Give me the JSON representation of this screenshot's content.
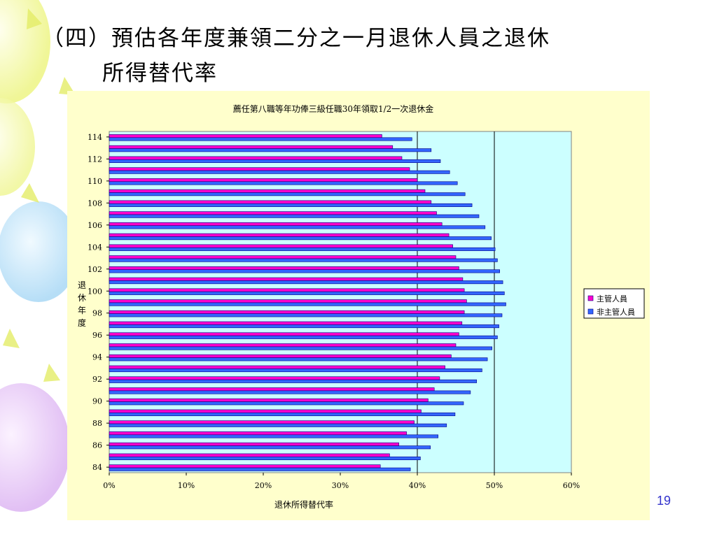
{
  "slide": {
    "title_line1": "（四）預估各年度兼領二分之一月退休人員之退休",
    "title_line2": "所得替代率",
    "page_number": "19"
  },
  "colors": {
    "plot_background": "#ccffff",
    "chart_background": "#ffffcc",
    "supervisor_bar": "#ff00cc",
    "non_supervisor_bar": "#3366ff",
    "bar_outline": "#000080"
  },
  "chart_data": {
    "type": "bar",
    "orientation": "horizontal",
    "title": "薦任第八職等年功俸三級任職30年領取1/2一次退休金",
    "xlabel": "退休所得替代率",
    "ylabel": "退休年度",
    "xlim": [
      0,
      0.6
    ],
    "x_ticks": [
      "0%",
      "10%",
      "20%",
      "30%",
      "40%",
      "50%",
      "60%"
    ],
    "reference_lines": [
      0.4,
      0.5
    ],
    "legend_position": "right",
    "categories": [
      "84",
      "85",
      "86",
      "87",
      "88",
      "89",
      "90",
      "91",
      "92",
      "93",
      "94",
      "95",
      "96",
      "97",
      "98",
      "99",
      "100",
      "101",
      "102",
      "103",
      "104",
      "105",
      "106",
      "107",
      "108",
      "109",
      "110",
      "111",
      "112",
      "113",
      "114"
    ],
    "y_tick_labels": [
      "84",
      "86",
      "88",
      "90",
      "92",
      "94",
      "96",
      "98",
      "100",
      "102",
      "104",
      "106",
      "108",
      "110",
      "112",
      "114"
    ],
    "series": [
      {
        "name": "主管人員",
        "values": [
          0.352,
          0.364,
          0.376,
          0.386,
          0.396,
          0.405,
          0.414,
          0.422,
          0.429,
          0.436,
          0.444,
          0.45,
          0.454,
          0.458,
          0.461,
          0.464,
          0.461,
          0.459,
          0.454,
          0.45,
          0.446,
          0.441,
          0.432,
          0.425,
          0.418,
          0.41,
          0.4,
          0.39,
          0.38,
          0.368,
          0.354
        ]
      },
      {
        "name": "非主管人員",
        "values": [
          0.391,
          0.404,
          0.417,
          0.427,
          0.438,
          0.449,
          0.46,
          0.469,
          0.477,
          0.484,
          0.491,
          0.497,
          0.504,
          0.506,
          0.51,
          0.515,
          0.513,
          0.511,
          0.507,
          0.504,
          0.501,
          0.496,
          0.488,
          0.48,
          0.471,
          0.462,
          0.452,
          0.442,
          0.43,
          0.418,
          0.393
        ]
      }
    ]
  }
}
